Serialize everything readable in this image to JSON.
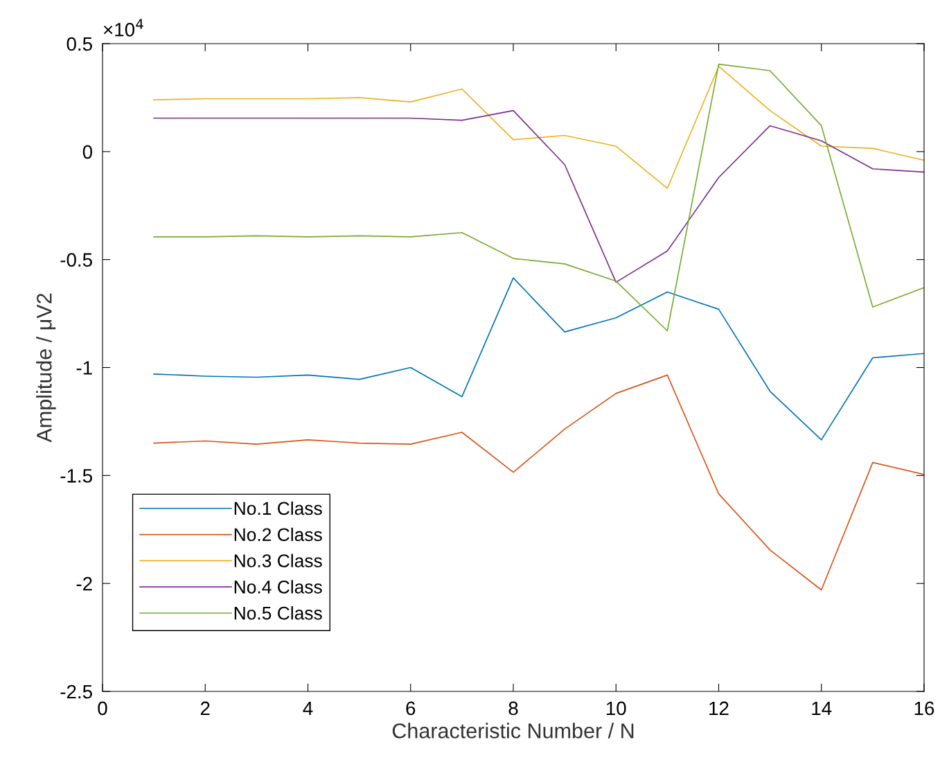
{
  "chart_data": {
    "type": "line",
    "xlabel": "Characteristic Number / N",
    "ylabel": "Amplitude / μV2",
    "annotations": [
      "×10$^{4}$"
    ],
    "x": [
      1,
      2,
      3,
      4,
      5,
      6,
      7,
      8,
      9,
      10,
      11,
      12,
      13,
      14,
      15,
      16
    ],
    "series": [
      {
        "name": "No.1 Class",
        "color": "#0072bd",
        "values": [
          -1.03,
          -1.04,
          -1.045,
          -1.035,
          -1.055,
          -1.0,
          -1.135,
          -0.585,
          -0.835,
          -0.77,
          -0.65,
          -0.73,
          -1.11,
          -1.335,
          -0.955,
          -0.935
        ]
      },
      {
        "name": "No.2 Class",
        "color": "#d95319",
        "values": [
          -1.35,
          -1.34,
          -1.355,
          -1.335,
          -1.35,
          -1.355,
          -1.3,
          -1.485,
          -1.285,
          -1.12,
          -1.035,
          -1.585,
          -1.845,
          -2.03,
          -1.44,
          -1.495
        ]
      },
      {
        "name": "No.3 Class",
        "color": "#edb120",
        "values": [
          0.24,
          0.245,
          0.245,
          0.245,
          0.25,
          0.23,
          0.29,
          0.055,
          0.075,
          0.025,
          -0.17,
          0.395,
          0.19,
          0.025,
          0.015,
          -0.04
        ]
      },
      {
        "name": "No.4 Class",
        "color": "#7e2f8e",
        "values": [
          0.155,
          0.155,
          0.155,
          0.155,
          0.155,
          0.155,
          0.145,
          0.19,
          -0.06,
          -0.605,
          -0.46,
          -0.12,
          0.12,
          0.05,
          -0.08,
          -0.095
        ]
      },
      {
        "name": "No.5 Class",
        "color": "#77ac30",
        "values": [
          -0.395,
          -0.395,
          -0.39,
          -0.395,
          -0.39,
          -0.395,
          -0.375,
          -0.495,
          -0.52,
          -0.6,
          -0.83,
          0.405,
          0.375,
          0.12,
          -0.72,
          -0.63
        ]
      }
    ],
    "xlim": [
      0,
      16
    ],
    "xticks": [
      0,
      2,
      4,
      6,
      8,
      10,
      12,
      14,
      16
    ],
    "ylim": [
      -2.5,
      0.5
    ],
    "yticks": [
      -2.5,
      -2,
      -1.5,
      -1,
      -0.5,
      0,
      0.5
    ],
    "grid": false,
    "legend": "bottom left",
    "marker": "none",
    "line_style": "solid"
  }
}
